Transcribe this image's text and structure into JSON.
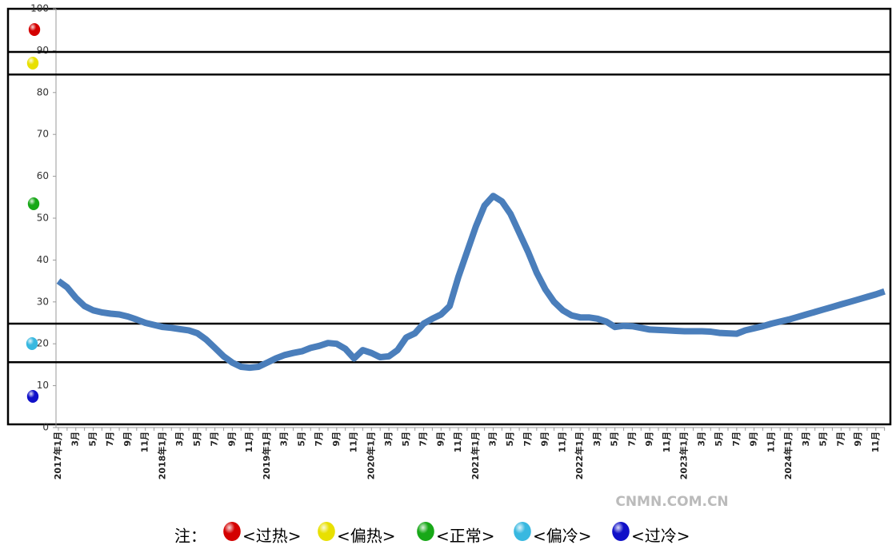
{
  "chart_data": {
    "type": "line",
    "categories": [
      "2017年1月",
      null,
      "3月",
      null,
      "5月",
      null,
      "7月",
      null,
      "9月",
      null,
      "11月",
      null,
      "2018年1月",
      null,
      "3月",
      null,
      "5月",
      null,
      "7月",
      null,
      "9月",
      null,
      "11月",
      null,
      "2019年1月",
      null,
      "3月",
      null,
      "5月",
      null,
      "7月",
      null,
      "9月",
      null,
      "11月",
      null,
      "2020年1月",
      null,
      "3月",
      null,
      "5月",
      null,
      "7月",
      null,
      "9月",
      null,
      "11月",
      null,
      "2021年1月",
      null,
      "3月",
      null,
      "5月",
      null,
      "7月",
      null,
      "9月",
      null,
      "11月",
      null,
      "2022年1月",
      null,
      "3月",
      null,
      "5月",
      null,
      "7月",
      null,
      "9月",
      null,
      "11月",
      null,
      "2023年1月",
      null,
      "3月",
      null,
      "5月",
      null,
      "7月",
      null,
      "9月",
      null,
      "11月",
      null,
      "2024年1月",
      null,
      "3月",
      null,
      "5月",
      null,
      "7月",
      null,
      "9月",
      null,
      "11月",
      null
    ],
    "values": [
      35,
      33.5,
      31,
      29,
      28,
      27.5,
      27.2,
      27,
      26.5,
      25.8,
      25,
      24.5,
      24,
      23.8,
      23.5,
      23.2,
      22.5,
      21,
      19,
      17,
      15.5,
      14.5,
      14.3,
      14.5,
      15.5,
      16.5,
      17.3,
      17.8,
      18.2,
      19,
      19.5,
      20.2,
      20,
      18.8,
      16.5,
      18.5,
      17.8,
      16.8,
      17,
      18.5,
      21.5,
      22.5,
      24.8,
      26,
      27,
      29,
      36,
      42,
      48,
      53,
      55.3,
      54,
      51,
      46.5,
      42,
      37,
      33,
      30,
      28,
      26.8,
      26.3,
      26.3,
      26,
      25.3,
      24,
      24.3,
      24.2,
      23.8,
      23.4,
      23.3,
      23.2,
      23.1,
      23,
      23,
      23,
      22.9,
      22.6,
      22.5,
      22.4,
      23.2,
      23.7,
      24.2,
      24.8,
      25.3,
      25.8,
      26.4,
      27,
      27.6,
      28.2,
      28.8,
      29.4,
      30,
      30.6,
      31.2,
      31.8,
      32.5
    ],
    "color": "#4a7ebb",
    "ylim": [
      0,
      100
    ],
    "yticks": [
      0,
      10,
      20,
      30,
      40,
      50,
      60,
      70,
      80,
      90,
      100
    ],
    "reference_lines": [
      89.7,
      84.3,
      24.8,
      15.6
    ],
    "legend_title": "注：",
    "legend": [
      {
        "label": "<过热>",
        "color": "#d40000"
      },
      {
        "label": "<偏热>",
        "color": "#e8e000"
      },
      {
        "label": "<正常>",
        "color": "#18a818"
      },
      {
        "label": "<偏冷>",
        "color": "#38b8e0"
      },
      {
        "label": "<过冷>",
        "color": "#1010c8"
      }
    ],
    "watermark": "CNMN.COM.CN"
  }
}
